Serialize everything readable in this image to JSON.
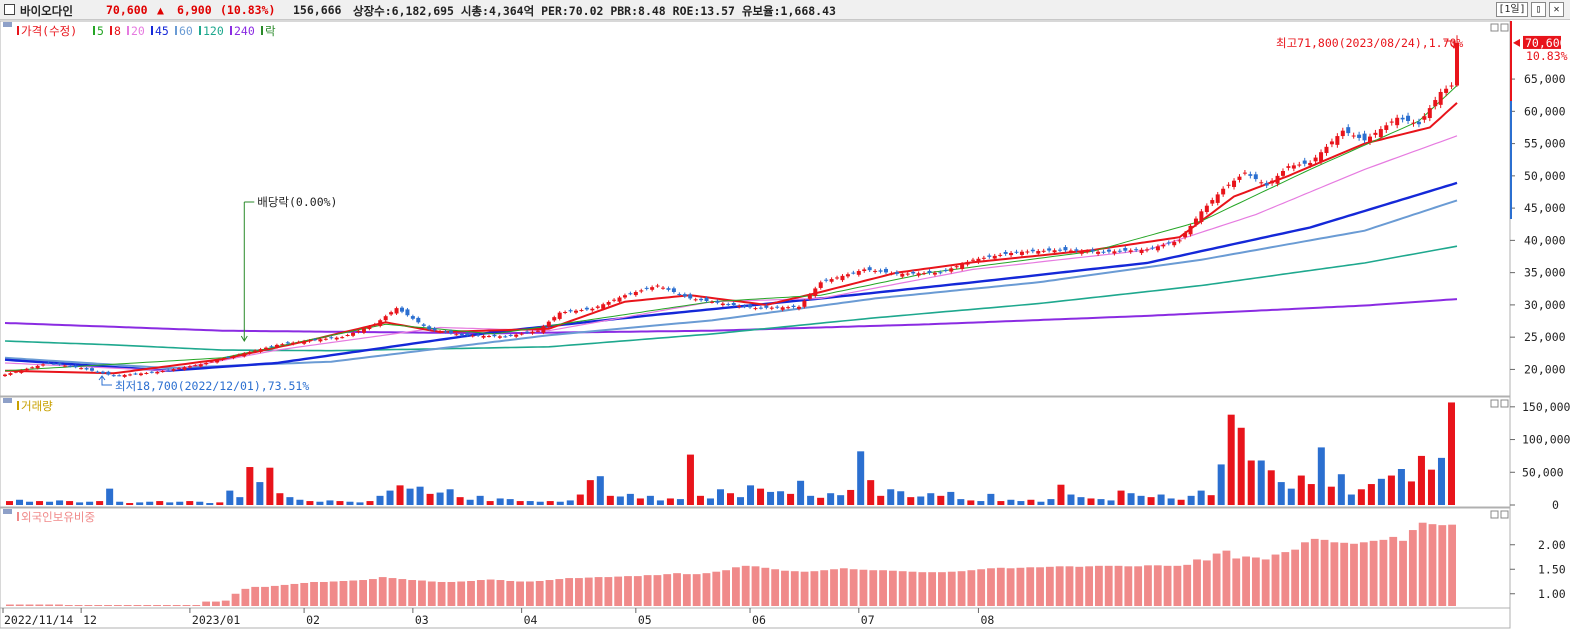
{
  "header": {
    "stock_name": "바이오다인",
    "price": "70,600",
    "arrow": "▲",
    "change": "6,900",
    "change_pct": "(10.83%)",
    "volume": "156,666",
    "info": "상장수:6,182,695  시총:4,364억  PER:70.02  PBR:8.48  ROE:13.57  유보율:1,668.43",
    "period_button": "[1일]",
    "min_button": "▯",
    "close_button": "✕"
  },
  "colors": {
    "up": "#e8141b",
    "down": "#2b6fd0",
    "ma5": "#25a525",
    "ma8": "#e8141b",
    "ma20": "#e67be0",
    "ma45": "#1428d8",
    "ma60": "#6a9bd4",
    "ma120": "#1ea88e",
    "ma240": "#8a2be2",
    "foreign": "#f08a8a",
    "rak": "#2a8a2a"
  },
  "chart_data": [
    {
      "type": "candlestick",
      "legend": [
        {
          "text": "가격(수정)",
          "color": "#e8141b"
        },
        {
          "text": "5",
          "color": "#25a525"
        },
        {
          "text": "8",
          "color": "#e8141b"
        },
        {
          "text": "20",
          "color": "#e67be0"
        },
        {
          "text": "45",
          "color": "#1428d8"
        },
        {
          "text": "60",
          "color": "#6a9bd4"
        },
        {
          "text": "120",
          "color": "#1ea88e"
        },
        {
          "text": "240",
          "color": "#8a2be2"
        },
        {
          "text": "락",
          "color": "#2a8a2a"
        }
      ],
      "ylim": [
        16500,
        74000
      ],
      "yticks": [
        20000,
        25000,
        30000,
        35000,
        40000,
        45000,
        50000,
        55000,
        60000,
        65000
      ],
      "ytick_labels": [
        "20,000",
        "25,000",
        "30,000",
        "35,000",
        "40,000",
        "45,000",
        "50,000",
        "55,000",
        "60,000",
        "65,000"
      ],
      "x_labels": [
        "2022/11/14",
        "12",
        "2023/01",
        "02",
        "03",
        "04",
        "05",
        "06",
        "07",
        "08"
      ],
      "last_price_label": "70,600",
      "last_pct_label": "10.83%",
      "close_points": [
        [
          0,
          19200
        ],
        [
          8,
          21000
        ],
        [
          14,
          20200
        ],
        [
          20,
          19000
        ],
        [
          28,
          19600
        ],
        [
          36,
          20800
        ],
        [
          44,
          22500
        ],
        [
          50,
          23800
        ],
        [
          56,
          24500
        ],
        [
          62,
          25000
        ],
        [
          68,
          27000
        ],
        [
          72,
          29500
        ],
        [
          78,
          26200
        ],
        [
          84,
          25300
        ],
        [
          92,
          25100
        ],
        [
          98,
          26000
        ],
        [
          102,
          28800
        ],
        [
          108,
          29400
        ],
        [
          114,
          31500
        ],
        [
          120,
          33000
        ],
        [
          126,
          31000
        ],
        [
          132,
          30200
        ],
        [
          138,
          29500
        ],
        [
          146,
          29700
        ],
        [
          150,
          33500
        ],
        [
          158,
          35500
        ],
        [
          164,
          34800
        ],
        [
          172,
          35000
        ],
        [
          178,
          37000
        ],
        [
          186,
          38200
        ],
        [
          194,
          38500
        ],
        [
          202,
          38200
        ],
        [
          210,
          38600
        ],
        [
          216,
          40000
        ],
        [
          220,
          44500
        ],
        [
          224,
          48000
        ],
        [
          228,
          50500
        ],
        [
          232,
          48500
        ],
        [
          236,
          51500
        ],
        [
          240,
          52000
        ],
        [
          246,
          57000
        ],
        [
          250,
          55500
        ],
        [
          256,
          59000
        ],
        [
          260,
          58000
        ],
        [
          264,
          63000
        ],
        [
          266,
          64000
        ],
        [
          267,
          70600
        ]
      ],
      "ohlc_last": {
        "open": 64000,
        "high": 71800,
        "low": 63800,
        "close": 70600
      },
      "moving_averages": {
        "ma5": [
          [
            0,
            19800
          ],
          [
            40,
            21800
          ],
          [
            70,
            27000
          ],
          [
            90,
            25500
          ],
          [
            130,
            30500
          ],
          [
            150,
            31500
          ],
          [
            170,
            35000
          ],
          [
            200,
            38300
          ],
          [
            220,
            43000
          ],
          [
            240,
            51000
          ],
          [
            260,
            58500
          ],
          [
            267,
            64000
          ]
        ],
        "ma8": [
          [
            0,
            19800
          ],
          [
            20,
            19400
          ],
          [
            40,
            21600
          ],
          [
            56,
            24500
          ],
          [
            70,
            27300
          ],
          [
            80,
            25800
          ],
          [
            100,
            26300
          ],
          [
            114,
            30500
          ],
          [
            126,
            31500
          ],
          [
            140,
            30000
          ],
          [
            150,
            32000
          ],
          [
            164,
            35000
          ],
          [
            178,
            36600
          ],
          [
            200,
            38500
          ],
          [
            216,
            40500
          ],
          [
            226,
            46800
          ],
          [
            236,
            50000
          ],
          [
            250,
            55000
          ],
          [
            262,
            57500
          ],
          [
            267,
            61300
          ]
        ],
        "ma20": [
          [
            0,
            21000
          ],
          [
            30,
            19800
          ],
          [
            50,
            23000
          ],
          [
            80,
            26500
          ],
          [
            100,
            26000
          ],
          [
            130,
            30500
          ],
          [
            150,
            31000
          ],
          [
            178,
            35500
          ],
          [
            210,
            38500
          ],
          [
            230,
            44000
          ],
          [
            250,
            51000
          ],
          [
            267,
            56200
          ]
        ],
        "ma45": [
          [
            0,
            21500
          ],
          [
            30,
            19800
          ],
          [
            50,
            21000
          ],
          [
            90,
            25800
          ],
          [
            120,
            28500
          ],
          [
            150,
            31000
          ],
          [
            178,
            33500
          ],
          [
            210,
            36500
          ],
          [
            240,
            42000
          ],
          [
            267,
            48900
          ]
        ],
        "ma60": [
          [
            0,
            21800
          ],
          [
            30,
            20200
          ],
          [
            60,
            21200
          ],
          [
            100,
            25300
          ],
          [
            130,
            27600
          ],
          [
            160,
            31000
          ],
          [
            190,
            33500
          ],
          [
            220,
            37000
          ],
          [
            250,
            41500
          ],
          [
            267,
            46200
          ]
        ],
        "ma120": [
          [
            0,
            24400
          ],
          [
            20,
            23800
          ],
          [
            40,
            23000
          ],
          [
            60,
            22900
          ],
          [
            100,
            23500
          ],
          [
            130,
            25500
          ],
          [
            160,
            28000
          ],
          [
            190,
            30200
          ],
          [
            220,
            33000
          ],
          [
            250,
            36500
          ],
          [
            267,
            39100
          ]
        ],
        "ma240": [
          [
            0,
            27200
          ],
          [
            40,
            26000
          ],
          [
            90,
            25600
          ],
          [
            130,
            26000
          ],
          [
            170,
            27000
          ],
          [
            210,
            28300
          ],
          [
            250,
            29900
          ],
          [
            267,
            30900
          ]
        ]
      },
      "annotations": [
        {
          "text": "최고71,800(2023/08/24),1.70%",
          "value": 71800,
          "date": "2023/08/24"
        },
        {
          "text": "최저18,700(2022/12/01),73.51%",
          "value": 18700,
          "date": "2022/12/01"
        },
        {
          "text": "배당락(0.00%)",
          "index": 44
        }
      ]
    },
    {
      "type": "bar",
      "title": "거래량",
      "ylim": [
        0,
        165000
      ],
      "yticks": [
        0,
        50000,
        100000,
        150000
      ],
      "ytick_labels": [
        "0",
        "50,000",
        "100,000",
        "150,000"
      ],
      "values": [
        6000,
        8000,
        5000,
        6000,
        5000,
        7000,
        6000,
        4000,
        5000,
        6000,
        25000,
        5000,
        3000,
        4000,
        5000,
        6000,
        4000,
        5000,
        6000,
        5000,
        3000,
        4000,
        22000,
        12000,
        58000,
        35000,
        57000,
        18000,
        12000,
        8000,
        6000,
        5000,
        7000,
        6000,
        5000,
        4000,
        6000,
        14000,
        22000,
        30000,
        25000,
        28000,
        17000,
        19000,
        24000,
        12000,
        8000,
        14000,
        6000,
        10000,
        9000,
        6000,
        6000,
        5000,
        6000,
        5000,
        7000,
        16000,
        38000,
        44000,
        14000,
        13000,
        17000,
        10000,
        14000,
        7000,
        10000,
        9000,
        77000,
        14000,
        10000,
        24000,
        18000,
        12000,
        30000,
        25000,
        20000,
        21000,
        17000,
        37000,
        14000,
        11000,
        18000,
        15000,
        23000,
        82000,
        38000,
        14000,
        24000,
        21000,
        12000,
        13000,
        18000,
        14000,
        20000,
        9000,
        7000,
        6000,
        17000,
        6000,
        8000,
        6000,
        8000,
        5000,
        9000,
        31000,
        16000,
        12000,
        10000,
        9000,
        7000,
        22000,
        18000,
        14000,
        12000,
        16000,
        10000,
        8000,
        14000,
        22000,
        15000,
        62000,
        138000,
        118000,
        68000,
        68000,
        53000,
        35000,
        25000,
        45000,
        32000,
        88000,
        28000,
        47000,
        16000,
        24000,
        32000,
        40000,
        45000,
        55000,
        36000,
        75000,
        54000,
        72000,
        156666
      ],
      "colors": "up/down"
    },
    {
      "type": "bar",
      "title": "외국인보유비중",
      "ylim": [
        0.75,
        2.75
      ],
      "yticks": [
        1.0,
        1.5,
        2.0
      ],
      "ytick_labels": [
        "1.00",
        "1.50",
        "2.00"
      ],
      "values": [
        0.78,
        0.78,
        0.78,
        0.78,
        0.78,
        0.78,
        0.77,
        0.77,
        0.77,
        0.77,
        0.77,
        0.77,
        0.77,
        0.77,
        0.77,
        0.77,
        0.77,
        0.77,
        0.77,
        0.77,
        0.84,
        0.84,
        0.86,
        1.0,
        1.1,
        1.14,
        1.14,
        1.16,
        1.18,
        1.2,
        1.22,
        1.24,
        1.24,
        1.25,
        1.26,
        1.27,
        1.28,
        1.3,
        1.34,
        1.32,
        1.3,
        1.28,
        1.27,
        1.25,
        1.24,
        1.24,
        1.25,
        1.26,
        1.28,
        1.29,
        1.28,
        1.26,
        1.25,
        1.25,
        1.26,
        1.28,
        1.3,
        1.32,
        1.32,
        1.33,
        1.34,
        1.34,
        1.35,
        1.36,
        1.36,
        1.38,
        1.38,
        1.4,
        1.42,
        1.4,
        1.4,
        1.42,
        1.45,
        1.48,
        1.54,
        1.57,
        1.56,
        1.53,
        1.5,
        1.47,
        1.46,
        1.45,
        1.46,
        1.48,
        1.5,
        1.52,
        1.5,
        1.49,
        1.48,
        1.48,
        1.47,
        1.46,
        1.45,
        1.44,
        1.44,
        1.44,
        1.45,
        1.46,
        1.48,
        1.5,
        1.52,
        1.53,
        1.52,
        1.53,
        1.54,
        1.54,
        1.55,
        1.56,
        1.56,
        1.55,
        1.56,
        1.57,
        1.57,
        1.57,
        1.56,
        1.56,
        1.58,
        1.58,
        1.57,
        1.57,
        1.59,
        1.7,
        1.68,
        1.82,
        1.88,
        1.72,
        1.76,
        1.74,
        1.7,
        1.8,
        1.85,
        1.9,
        2.05,
        2.12,
        2.1,
        2.05,
        2.04,
        2.02,
        2.05,
        2.08,
        2.1,
        2.16,
        2.08,
        2.3,
        2.45,
        2.42,
        2.4,
        2.41
      ],
      "color": "#f08a8a"
    }
  ]
}
